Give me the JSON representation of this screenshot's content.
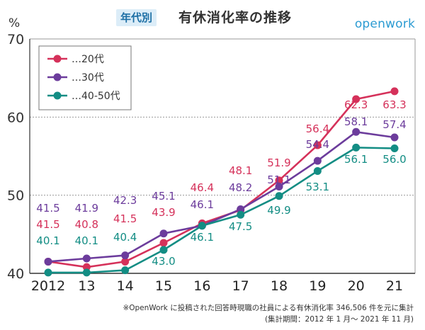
{
  "header": {
    "badge": "年代別",
    "title": "有休消化率の推移",
    "brand": "openwork"
  },
  "footnote": {
    "line1": "※OpenWork に投稿された回答時現職の社員による有休消化率 346,506 件を元に集計",
    "line2": "(集計期間：2012 年 1 月〜 2021 年 11 月)"
  },
  "chart_data": {
    "type": "line",
    "unit": "%",
    "categories": [
      "2012",
      "13",
      "14",
      "15",
      "16",
      "17",
      "18",
      "19",
      "20",
      "21"
    ],
    "ylim": [
      40,
      70
    ],
    "yticks": [
      40,
      50,
      60,
      70
    ],
    "grid": "horizontal",
    "legend_position": "top-left",
    "series": [
      {
        "name": "…20代",
        "color": "#d5315a",
        "values": [
          41.5,
          40.8,
          41.5,
          43.9,
          46.4,
          48.1,
          51.9,
          56.4,
          62.3,
          63.3
        ]
      },
      {
        "name": "…30代",
        "color": "#6c3c9c",
        "values": [
          41.5,
          41.9,
          42.3,
          45.1,
          46.1,
          48.2,
          51.1,
          54.4,
          58.1,
          57.4
        ]
      },
      {
        "name": "…40-50代",
        "color": "#138d84",
        "values": [
          40.1,
          40.1,
          40.4,
          43.0,
          46.1,
          47.5,
          49.9,
          53.1,
          56.1,
          56.0
        ]
      }
    ]
  }
}
